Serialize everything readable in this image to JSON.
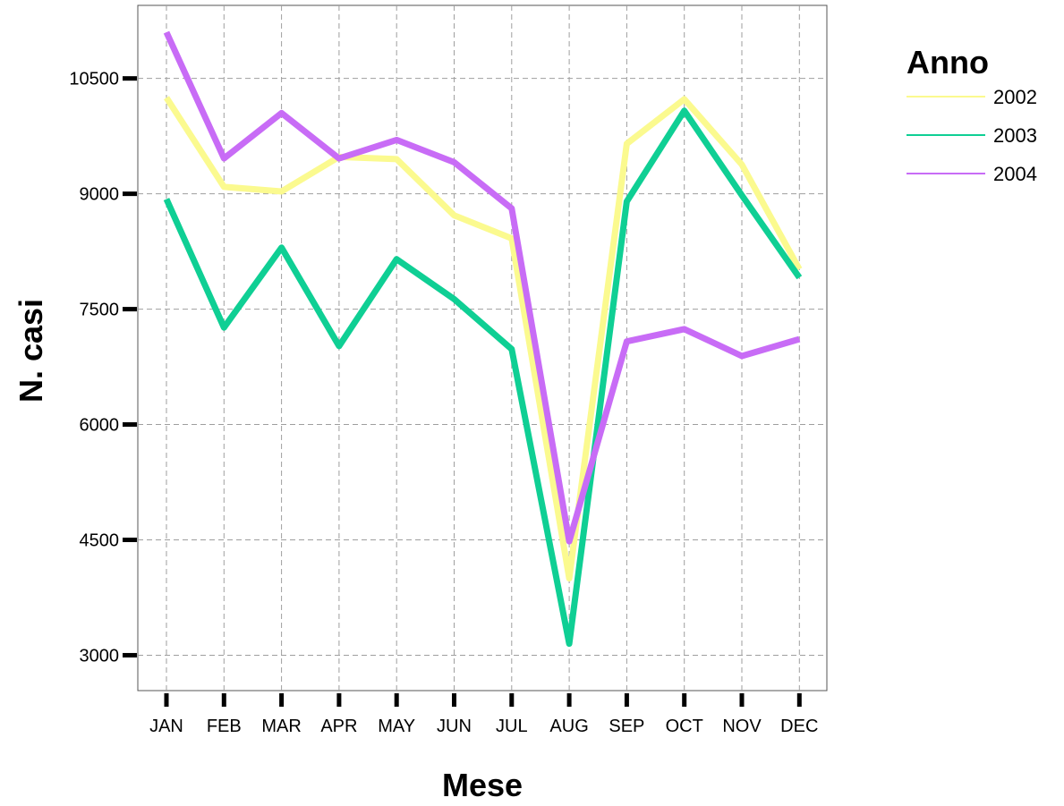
{
  "chart_data": {
    "type": "line",
    "title": "",
    "xlabel": "Mese",
    "ylabel": "N. casi",
    "categories": [
      "JAN",
      "FEB",
      "MAR",
      "APR",
      "MAY",
      "JUN",
      "JUL",
      "AUG",
      "SEP",
      "OCT",
      "NOV",
      "DEC"
    ],
    "yticks": [
      3000,
      4500,
      6000,
      7500,
      9000,
      10500
    ],
    "ylim": [
      2540,
      11450
    ],
    "grid": true,
    "legend": {
      "title": "Anno",
      "placement": "right"
    },
    "series": [
      {
        "name": "2002",
        "color": "#fbfa8f",
        "values": [
          10250,
          9090,
          9030,
          9480,
          9450,
          8720,
          8420,
          4000,
          9650,
          10230,
          9380,
          8020
        ]
      },
      {
        "name": "2003",
        "color": "#0fcf94",
        "values": [
          8930,
          7260,
          8300,
          7020,
          8150,
          7630,
          6980,
          3150,
          8900,
          10080,
          8980,
          7910
        ]
      },
      {
        "name": "2004",
        "color": "#c86cf6",
        "values": [
          11100,
          9460,
          10050,
          9460,
          9700,
          9410,
          8810,
          4480,
          7080,
          7240,
          6890,
          7110
        ]
      }
    ]
  }
}
